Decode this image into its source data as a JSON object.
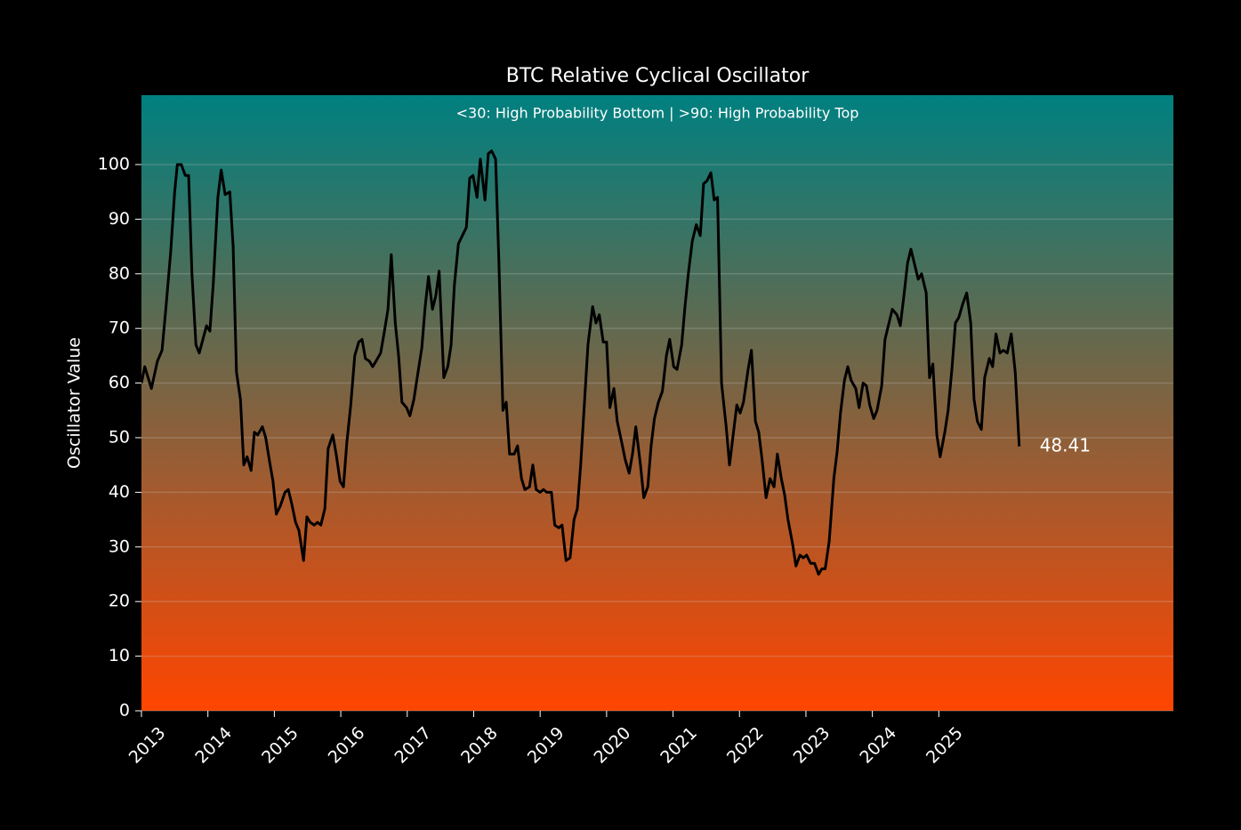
{
  "chart_data": {
    "type": "line",
    "title": "BTC Relative Cyclical Oscillator",
    "subtitle": "<30: High Probability Bottom | >90: High Probability Top",
    "y_label": "Oscillator Value",
    "color": "#000000",
    "background_gradient": [
      "#008080",
      "#ff4500"
    ],
    "grid": true,
    "last_value_label": true,
    "xlim": [
      2013,
      2028.53
    ],
    "xticks": [
      2013,
      2014,
      2015,
      2016,
      2017,
      2018,
      2019,
      2020,
      2021,
      2022,
      2023,
      2024,
      2025
    ],
    "ylim": [
      0,
      112.7
    ],
    "yticks": [
      0,
      10,
      20,
      30,
      40,
      50,
      60,
      70,
      80,
      90,
      100
    ],
    "x": [
      2013.0,
      2013.05,
      2013.15,
      2013.24,
      2013.31,
      2013.37,
      2013.44,
      2013.5,
      2013.54,
      2013.6,
      2013.66,
      2013.71,
      2013.76,
      2013.82,
      2013.87,
      2013.98,
      2014.03,
      2014.08,
      2014.15,
      2014.2,
      2014.26,
      2014.33,
      2014.38,
      2014.43,
      2014.49,
      2014.54,
      2014.59,
      2014.65,
      2014.7,
      2014.75,
      2014.82,
      2014.87,
      2014.93,
      2014.98,
      2015.03,
      2015.09,
      2015.16,
      2015.21,
      2015.26,
      2015.32,
      2015.37,
      2015.44,
      2015.49,
      2015.54,
      2015.6,
      2015.65,
      2015.7,
      2015.76,
      2015.81,
      2015.88,
      2015.93,
      2015.99,
      2016.04,
      2016.09,
      2016.15,
      2016.21,
      2016.27,
      2016.32,
      2016.37,
      2016.43,
      2016.48,
      2016.53,
      2016.6,
      2016.65,
      2016.71,
      2016.76,
      2016.82,
      2016.87,
      2016.92,
      2016.99,
      2017.04,
      2017.1,
      2017.15,
      2017.22,
      2017.27,
      2017.32,
      2017.38,
      2017.43,
      2017.48,
      2017.55,
      2017.61,
      2017.66,
      2017.71,
      2017.77,
      2017.83,
      2017.89,
      2017.94,
      2017.99,
      2018.05,
      2018.1,
      2018.17,
      2018.22,
      2018.27,
      2018.33,
      2018.38,
      2018.44,
      2018.49,
      2018.54,
      2018.61,
      2018.66,
      2018.72,
      2018.77,
      2018.84,
      2018.89,
      2018.94,
      2019.0,
      2019.05,
      2019.1,
      2019.17,
      2019.22,
      2019.28,
      2019.33,
      2019.39,
      2019.45,
      2019.51,
      2019.56,
      2019.61,
      2019.67,
      2019.72,
      2019.79,
      2019.84,
      2019.89,
      2019.95,
      2020.0,
      2020.05,
      2020.11,
      2020.16,
      2020.23,
      2020.28,
      2020.34,
      2020.39,
      2020.44,
      2020.51,
      2020.56,
      2020.62,
      2020.67,
      2020.72,
      2020.78,
      2020.84,
      2020.9,
      2020.95,
      2021.01,
      2021.06,
      2021.13,
      2021.18,
      2021.23,
      2021.29,
      2021.35,
      2021.41,
      2021.46,
      2021.51,
      2021.57,
      2021.62,
      2021.67,
      2021.73,
      2021.8,
      2021.85,
      2021.9,
      2021.96,
      2022.01,
      2022.06,
      2022.13,
      2022.18,
      2022.24,
      2022.29,
      2022.34,
      2022.4,
      2022.46,
      2022.52,
      2022.57,
      2022.63,
      2022.68,
      2022.73,
      2022.8,
      2022.85,
      2022.91,
      2022.96,
      2023.01,
      2023.07,
      2023.13,
      2023.19,
      2023.24,
      2023.29,
      2023.35,
      2023.42,
      2023.47,
      2023.52,
      2023.58,
      2023.63,
      2023.68,
      2023.75,
      2023.8,
      2023.86,
      2023.91,
      2023.96,
      2024.02,
      2024.07,
      2024.14,
      2024.19,
      2024.25,
      2024.3,
      2024.37,
      2024.42,
      2024.47,
      2024.53,
      2024.58,
      2024.63,
      2024.69,
      2024.74,
      2024.81,
      2024.86,
      2024.91,
      2024.97,
      2025.02,
      2025.09,
      2025.14,
      2025.2,
      2025.25,
      2025.3,
      2025.36,
      2025.42,
      2025.48,
      2025.53,
      2025.58,
      2025.64,
      2025.69,
      2025.76,
      2025.81,
      2025.86,
      2025.92,
      2025.97,
      2026.03,
      2026.09,
      2026.15,
      2026.21
    ],
    "values": [
      60,
      63,
      59,
      64,
      66,
      74,
      84,
      95,
      100,
      100,
      98,
      98,
      80,
      67,
      65.5,
      70.5,
      69.5,
      78,
      94,
      99,
      94.5,
      95,
      85,
      62,
      57,
      45,
      46.5,
      44,
      51,
      50.5,
      52,
      50,
      45.5,
      42,
      36,
      37.5,
      40,
      40.5,
      38,
      34.5,
      33,
      27.5,
      35.5,
      34.5,
      34,
      34.5,
      34,
      37,
      48,
      50.5,
      47,
      42,
      41,
      49,
      56,
      65,
      67.5,
      68,
      64.5,
      64,
      63,
      64,
      65.5,
      69,
      73.5,
      83.5,
      71,
      65,
      56.5,
      55.5,
      54,
      57,
      61,
      66.5,
      74,
      79.5,
      73.5,
      76,
      80.5,
      61,
      63,
      67,
      78,
      85.5,
      87,
      88.5,
      97.5,
      98,
      94,
      101,
      93.5,
      102,
      102.5,
      101,
      82,
      55,
      56.5,
      47,
      47,
      48.5,
      42.5,
      40.5,
      41,
      45,
      40.5,
      40,
      40.5,
      40,
      40,
      34,
      33.5,
      34,
      27.5,
      28,
      35,
      37,
      45,
      57,
      67,
      74,
      71,
      72.5,
      67.5,
      67.5,
      55.5,
      59,
      53,
      49,
      46,
      43.5,
      47,
      52,
      45,
      39,
      41,
      48.5,
      53.5,
      56.5,
      58.5,
      65,
      68,
      63,
      62.5,
      67,
      74,
      80,
      86,
      89,
      87,
      96.5,
      97,
      98.5,
      93.5,
      94,
      60,
      52,
      45,
      50,
      56,
      54.5,
      56.5,
      62.5,
      66,
      53,
      51,
      46,
      39,
      42.5,
      41,
      47,
      42.5,
      39.5,
      35,
      30.5,
      26.5,
      28.5,
      28,
      28.5,
      27,
      27,
      25,
      26,
      26,
      31,
      42.5,
      47.5,
      54.5,
      60.5,
      63,
      60.5,
      59,
      55.5,
      60,
      59.5,
      56,
      53.5,
      55,
      59.5,
      68,
      71,
      73.5,
      72.5,
      70.5,
      75.5,
      82,
      84.5,
      82,
      79,
      80,
      76.5,
      61,
      63.5,
      50.5,
      46.5,
      51,
      55,
      63,
      71,
      72,
      74.5,
      76.5,
      71,
      57,
      53,
      51.5,
      61,
      64.5,
      63,
      69,
      65.5,
      66,
      65.5,
      69,
      62,
      48.41
    ]
  }
}
